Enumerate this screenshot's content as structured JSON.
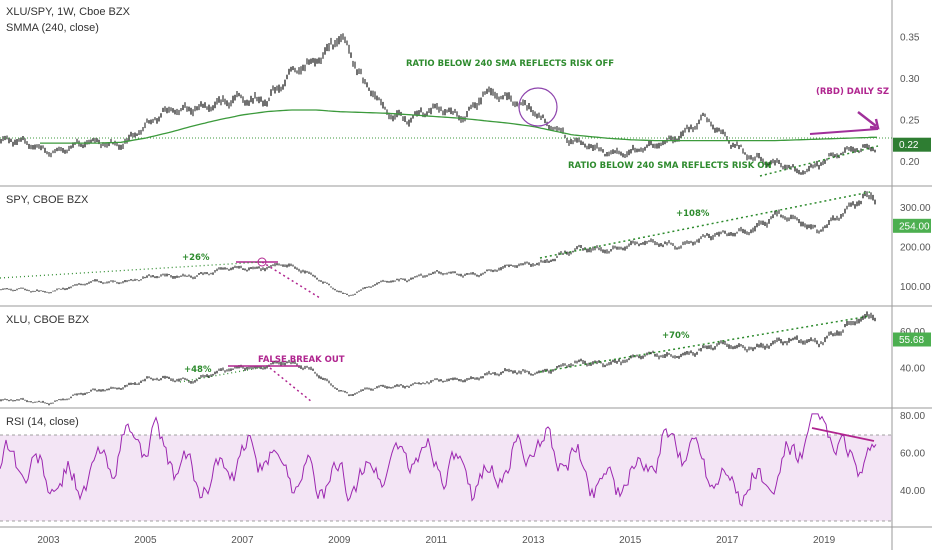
{
  "panes": {
    "ratio": {
      "title": "XLU/SPY, 1W, Cboe BZX",
      "indicator": "SMMA (240, close)",
      "ticks": [
        "0.35",
        "0.30",
        "0.25",
        "0.20"
      ],
      "tick_values": [
        0.35,
        0.3,
        0.25,
        0.2
      ],
      "ylim": [
        0.175,
        0.39
      ],
      "last_value": "0.22",
      "annotations": {
        "risk_off": "RATIO BELOW 240 SMA REFLECTS RISK OFF",
        "risk_on": "RATIO BELOW 240 SMA REFLECTS RISK ON",
        "daily_sz": "(RBD) DAILY SZ"
      }
    },
    "spy": {
      "title": "SPY, CBOE BZX",
      "ticks": [
        "300.00",
        "200.00",
        "100.00"
      ],
      "tick_values": [
        300,
        200,
        100
      ],
      "ylim": [
        60,
        345
      ],
      "last_value": "254.00",
      "annotations": {
        "gain_early": "+26%",
        "gain_late": "+108%"
      }
    },
    "xlu": {
      "title": "XLU, CBOE BZX",
      "ticks": [
        "60.00",
        "40.00"
      ],
      "tick_values": [
        60,
        40
      ],
      "ylim": [
        20,
        72
      ],
      "last_value": "55.68",
      "annotations": {
        "gain_early": "+48%",
        "false_break": "FALSE BREAK OUT",
        "gain_late": "+70%"
      }
    },
    "rsi": {
      "title": "RSI (14, close)",
      "ticks": [
        "80.00",
        "60.00",
        "40.00"
      ],
      "tick_values": [
        80,
        60,
        40
      ],
      "ylim": [
        22,
        82
      ],
      "band": [
        30,
        70
      ]
    }
  },
  "time_axis": [
    "2003",
    "2005",
    "2007",
    "2009",
    "2011",
    "2013",
    "2015",
    "2017",
    "2019"
  ],
  "colors": {
    "candles": "#2b2b2b",
    "sma": "#3c9a3c",
    "annotation_green": "#2e8b2e",
    "annotation_purple": "#b0258f",
    "trend_purple": "#a0309a",
    "rsi_line": "#9c27b0",
    "rsi_band": "#f3e5f5",
    "badge_green": "#4caf50"
  },
  "chart_data": [
    {
      "type": "line",
      "name": "XLU/SPY",
      "x": [
        2002.0,
        2003.0,
        2004.0,
        2004.5,
        2005.0,
        2005.5,
        2006.0,
        2006.5,
        2007.0,
        2007.5,
        2008.0,
        2008.5,
        2009.0,
        2009.5,
        2010.0,
        2010.5,
        2011.0,
        2011.5,
        2012.0,
        2012.5,
        2013.0,
        2013.4,
        2013.8,
        2014.5,
        2015.0,
        2015.5,
        2016.0,
        2016.5,
        2017.0,
        2017.5,
        2018.0,
        2018.5,
        2019.0,
        2019.5,
        2020.0,
        2020.2
      ],
      "values": [
        0.225,
        0.215,
        0.22,
        0.225,
        0.24,
        0.26,
        0.27,
        0.265,
        0.275,
        0.28,
        0.3,
        0.32,
        0.36,
        0.29,
        0.26,
        0.255,
        0.26,
        0.255,
        0.285,
        0.27,
        0.265,
        0.245,
        0.22,
        0.215,
        0.21,
        0.215,
        0.235,
        0.25,
        0.225,
        0.21,
        0.195,
        0.185,
        0.205,
        0.21,
        0.215,
        0.22
      ],
      "sma_240": [
        0.222,
        0.222,
        0.222,
        0.223,
        0.228,
        0.235,
        0.243,
        0.25,
        0.256,
        0.26,
        0.262,
        0.262,
        0.26,
        0.259,
        0.258,
        0.256,
        0.254,
        0.252,
        0.249,
        0.246,
        0.242,
        0.237,
        0.232,
        0.228,
        0.226,
        0.225,
        0.225,
        0.225,
        0.225,
        0.225,
        0.225,
        0.226,
        0.227,
        0.228,
        0.229,
        0.229
      ]
    },
    {
      "type": "line",
      "name": "SPY",
      "x": [
        2002.0,
        2003.0,
        2004.0,
        2005.0,
        2006.0,
        2007.0,
        2007.8,
        2008.5,
        2009.2,
        2010.0,
        2011.0,
        2012.0,
        2013.0,
        2014.0,
        2015.0,
        2016.0,
        2017.0,
        2018.0,
        2018.9,
        2019.5,
        2020.0,
        2020.15,
        2020.2
      ],
      "values": [
        90,
        88,
        110,
        120,
        130,
        145,
        155,
        125,
        75,
        115,
        130,
        135,
        160,
        190,
        205,
        210,
        230,
        275,
        250,
        290,
        330,
        300,
        254
      ]
    },
    {
      "type": "line",
      "name": "XLU",
      "x": [
        2002.0,
        2003.0,
        2004.0,
        2005.0,
        2006.0,
        2007.0,
        2007.8,
        2008.5,
        2009.2,
        2010.0,
        2011.0,
        2012.0,
        2013.0,
        2014.0,
        2015.0,
        2016.0,
        2017.0,
        2018.0,
        2018.9,
        2019.5,
        2020.0,
        2020.15,
        2020.2
      ],
      "values": [
        22,
        21,
        27,
        33,
        34,
        40,
        43,
        38,
        25,
        30,
        32,
        36,
        38,
        42,
        45,
        48,
        52,
        53,
        56,
        62,
        69,
        65,
        55.68
      ]
    },
    {
      "type": "line",
      "name": "RSI",
      "x": [
        2002.0,
        2003.0,
        2004.0,
        2005.0,
        2006.0,
        2007.0,
        2008.0,
        2009.0,
        2010.0,
        2011.0,
        2012.0,
        2013.0,
        2014.0,
        2015.0,
        2016.0,
        2017.0,
        2018.0,
        2019.0,
        2019.5,
        2020.0,
        2020.2
      ],
      "values": [
        50,
        48,
        55,
        62,
        52,
        57,
        45,
        52,
        50,
        55,
        52,
        57,
        53,
        50,
        58,
        50,
        46,
        72,
        55,
        68,
        52
      ]
    }
  ]
}
